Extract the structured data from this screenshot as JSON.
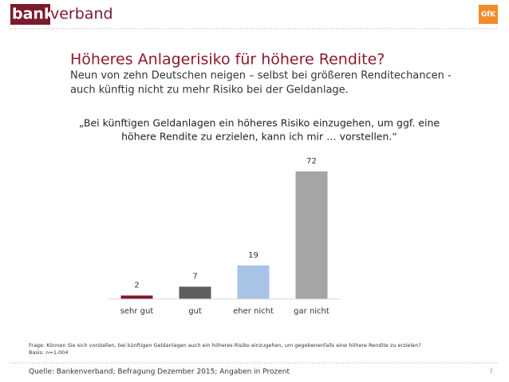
{
  "header": {
    "logo_left": "banken",
    "logo_right": "verband",
    "brand": "GfK"
  },
  "chart_data": {
    "type": "bar",
    "title": "Höheres Anlagerisiko für höhere Rendite?",
    "subtitle": [
      "Neun von zehn Deutschen neigen – selbst bei größeren Renditechancen -",
      "auch künftig nicht zu mehr Risiko bei der Geldanlage."
    ],
    "quote": [
      "„Bei künftigen Geldanlagen ein höheres Risiko einzugehen, um ggf. eine",
      "höhere Rendite zu erzielen, kann ich mir … vorstellen.“"
    ],
    "categories": [
      "sehr gut",
      "gut",
      "eher nicht",
      "gar nicht"
    ],
    "values": [
      2,
      7,
      19,
      72
    ],
    "colors": [
      "#7b1a2c",
      "#5e5e5e",
      "#a9c3e7",
      "#a5a5a5"
    ]
  },
  "notes": [
    "Frage: Können Sie sich vorstellen, bei künftigen Geldanlagen auch ein höheres Risiko einzugehen, um gegebenenfalls eine höhere Rendite zu erzielen?",
    "Basis: n=1.004"
  ],
  "footer": {
    "source": "Quelle: Bankenverband; Befragung Dezember 2015; Angaben in Prozent",
    "page": "7"
  }
}
